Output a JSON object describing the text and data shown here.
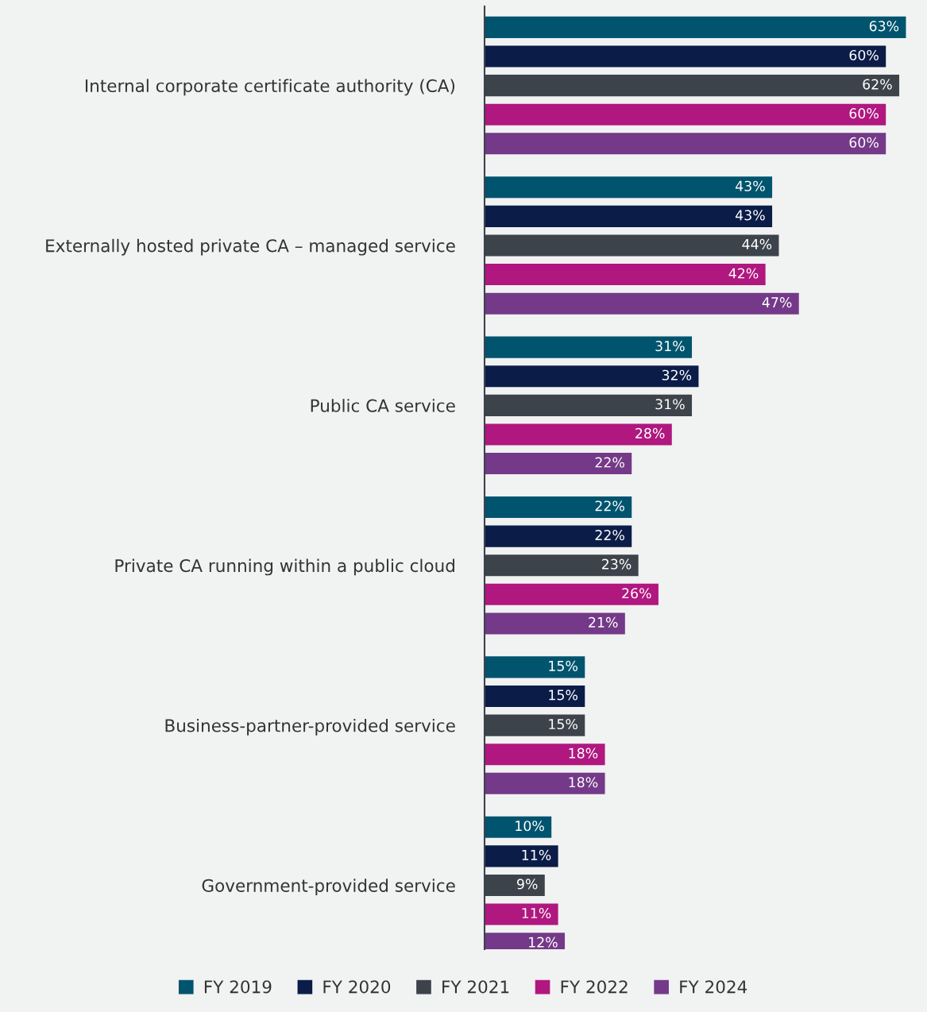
{
  "chart_data": {
    "type": "bar",
    "orientation": "horizontal",
    "categories": [
      "Internal corporate certificate authority (CA)",
      "Externally hosted private CA – managed service",
      "Public CA service",
      "Private CA running within a public cloud",
      "Business-partner-provided service",
      "Government-provided service"
    ],
    "series": [
      {
        "name": "FY 2019",
        "color": "#00546e",
        "values": [
          63,
          43,
          31,
          22,
          15,
          10
        ],
        "value_labels": [
          "63%",
          "43%",
          "31%",
          "22%",
          "15%",
          "10%"
        ]
      },
      {
        "name": "FY 2020",
        "color": "#0b1c48",
        "values": [
          60,
          43,
          32,
          22,
          15,
          11
        ],
        "value_labels": [
          "60%",
          "43%",
          "32%",
          "22%",
          "15%",
          "11%"
        ]
      },
      {
        "name": "FY 2021",
        "color": "#3d434b",
        "values": [
          62,
          44,
          31,
          23,
          15,
          9
        ],
        "value_labels": [
          "62%",
          "44%",
          "31%",
          "23%",
          "15%",
          "9%"
        ]
      },
      {
        "name": "FY 2022",
        "color": "#b0177f",
        "values": [
          60,
          42,
          28,
          26,
          18,
          11
        ],
        "value_labels": [
          "60%",
          "42%",
          "28%",
          "26%",
          "18%",
          "11%"
        ]
      },
      {
        "name": "FY 2024",
        "color": "#743988",
        "values": [
          60,
          47,
          22,
          21,
          18,
          12
        ],
        "value_labels": [
          "60%",
          "47%",
          "22%",
          "21%",
          "18%",
          "12%"
        ]
      }
    ],
    "legend": "bottom",
    "grid": false
  }
}
